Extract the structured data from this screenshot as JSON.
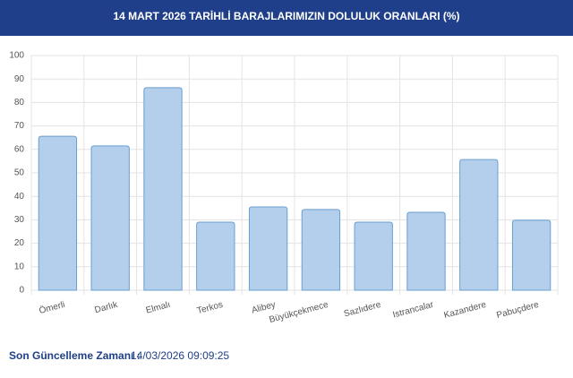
{
  "chart_data": {
    "type": "bar",
    "title": "14 MART 2026 TARİHLİ BARAJLARIMIZIN DOLULUK ORANLARI (%)",
    "categories": [
      "Ömerli",
      "Darlık",
      "Elmalı",
      "Terkos",
      "Alibey",
      "Büyükçekmece",
      "Sazlıdere",
      "Istrancalar",
      "Kazandere",
      "Pabuçdere"
    ],
    "values": [
      65.6,
      61.5,
      86.3,
      29,
      35.5,
      34.4,
      29,
      33.2,
      55.7,
      29.8
    ],
    "color": "#b3cfec",
    "border_color": "#6a9fd0",
    "ylim": [
      0,
      100
    ],
    "yticks": [
      0,
      10,
      20,
      30,
      40,
      50,
      60,
      70,
      80,
      90,
      100
    ],
    "grid": true
  },
  "footer": {
    "label": "Son Güncelleme Zamanı :",
    "value": "14/03/2026 09:09:25"
  }
}
